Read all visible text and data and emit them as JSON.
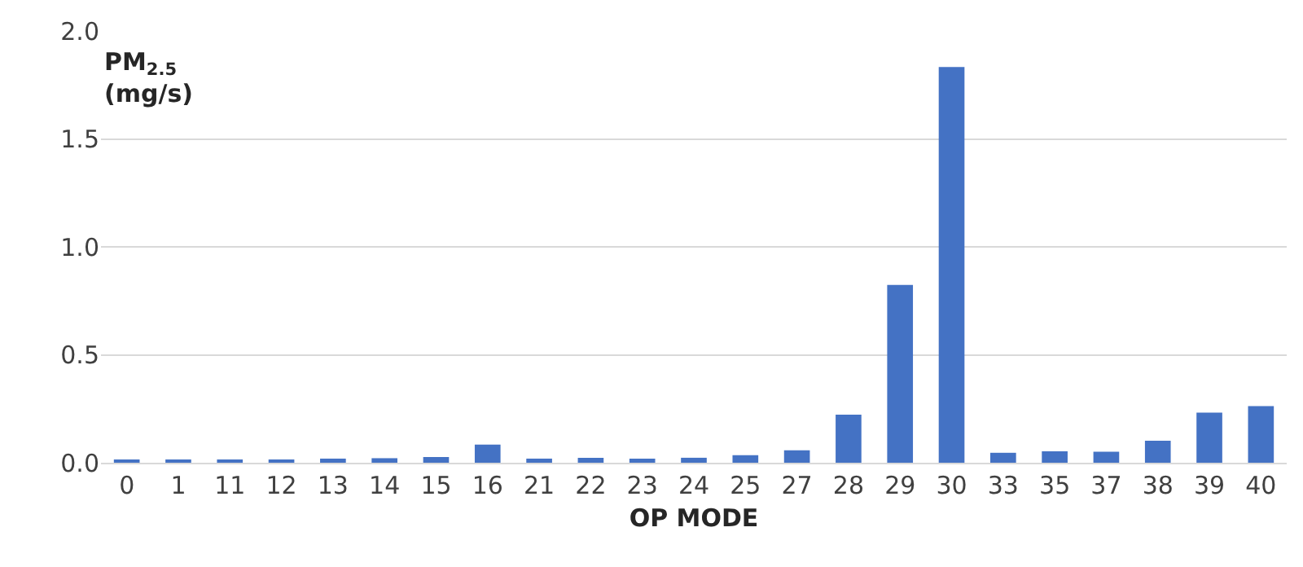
{
  "chart_data": {
    "type": "bar",
    "xlabel": "OP MODE",
    "ylabel": "PM$_{2.5}$\n(mg/s)",
    "categories": [
      "0",
      "1",
      "11",
      "12",
      "13",
      "14",
      "15",
      "16",
      "21",
      "22",
      "23",
      "24",
      "25",
      "27",
      "28",
      "29",
      "30",
      "33",
      "35",
      "37",
      "38",
      "39",
      "40"
    ],
    "values": [
      0.012,
      0.01,
      0.01,
      0.012,
      0.019,
      0.021,
      0.026,
      0.084,
      0.019,
      0.023,
      0.019,
      0.023,
      0.035,
      0.058,
      0.223,
      0.824,
      1.833,
      0.046,
      0.053,
      0.051,
      0.102,
      0.232,
      0.262
    ],
    "color": "#4472c4",
    "ylim": [
      0,
      2.0
    ],
    "yticks": [
      {
        "value": 0,
        "label": "0.0"
      },
      {
        "value": 0.5,
        "label": "0.5"
      },
      {
        "value": 1.0,
        "label": "1.0"
      },
      {
        "value": 1.5,
        "label": "1.5"
      },
      {
        "value": 2.0,
        "label": "2.0"
      }
    ],
    "grid": "y",
    "legend": false
  }
}
